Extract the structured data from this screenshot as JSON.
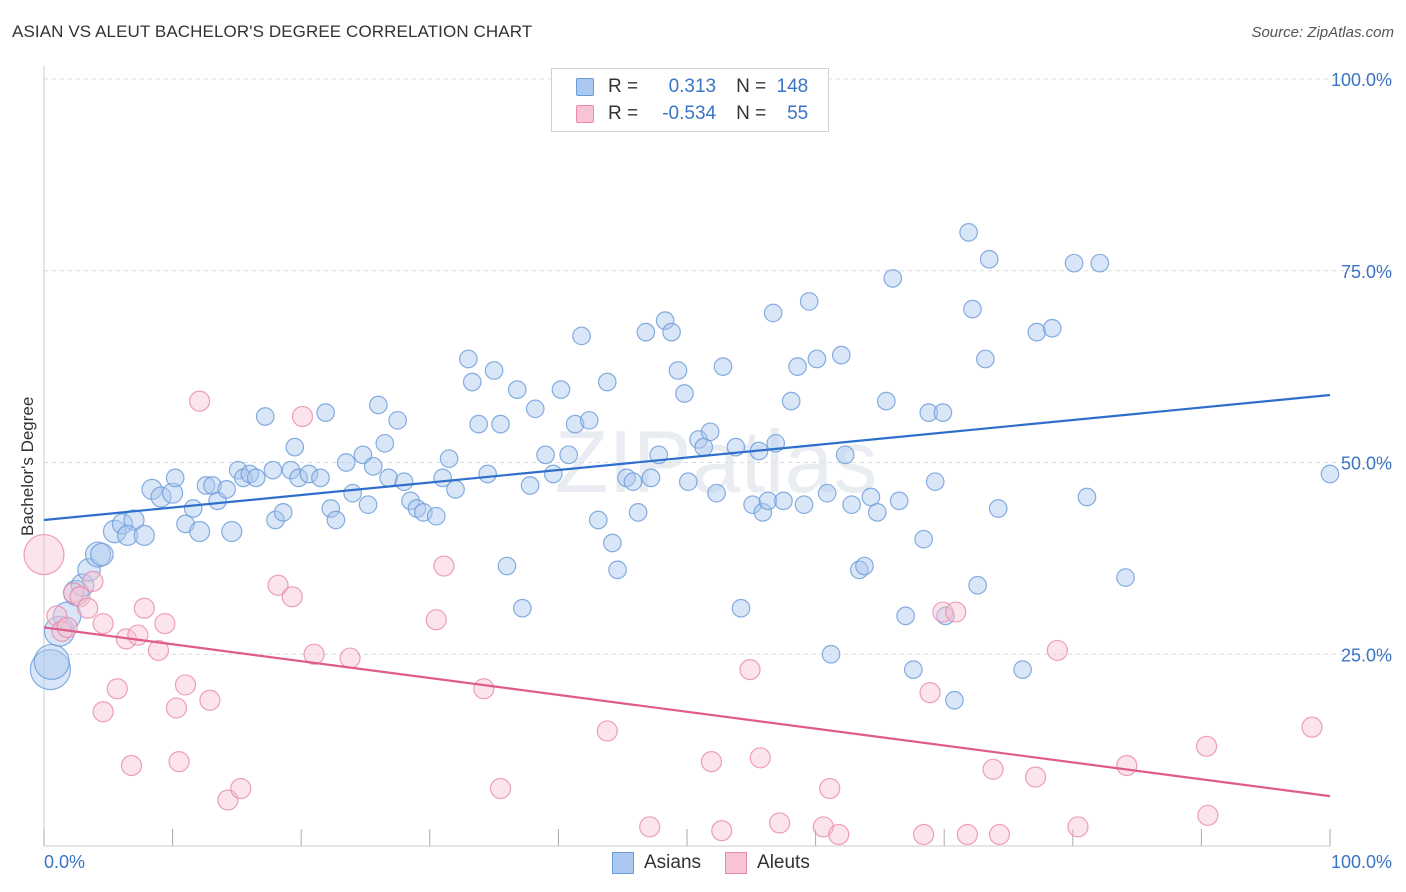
{
  "header": {
    "title": "ASIAN VS ALEUT BACHELOR'S DEGREE CORRELATION CHART",
    "source": "Source: ZipAtlas.com"
  },
  "legend": {
    "rows": [
      {
        "r_label": "R =",
        "r_value": "0.313",
        "n_label": "N =",
        "n_value": "148",
        "color": "#aac8f0",
        "stroke": "#6a9ad8"
      },
      {
        "r_label": "R =",
        "r_value": "-0.534",
        "n_label": "N =",
        "n_value": "55",
        "color": "#f8c4d4",
        "stroke": "#e88aa8"
      }
    ]
  },
  "bottom_legend": {
    "items": [
      {
        "label": "Asians",
        "color": "#aac8f0",
        "stroke": "#6a9ad8"
      },
      {
        "label": "Aleuts",
        "color": "#f8c4d4",
        "stroke": "#e88aa8"
      }
    ]
  },
  "watermark": "ZIPatlas",
  "chart_data": {
    "type": "scatter",
    "title": "ASIAN VS ALEUT BACHELOR'S DEGREE CORRELATION CHART",
    "xlabel": "",
    "ylabel": "Bachelor's Degree",
    "xlim": [
      0,
      100
    ],
    "ylim": [
      0,
      100
    ],
    "x_tick_labels": [
      "0.0%",
      "100.0%"
    ],
    "y_tick_labels": [
      "100.0%",
      "75.0%",
      "50.0%",
      "25.0%"
    ],
    "y_ticks": [
      100,
      75,
      50,
      25
    ],
    "grid": true,
    "legend_position": "top-center",
    "series": [
      {
        "name": "Asians",
        "color": "#6a9ad8",
        "fill": "#aac8f0",
        "trend": {
          "x": [
            0,
            100
          ],
          "y": [
            42.5,
            58.8
          ],
          "color": "#2f6fcc"
        },
        "points": [
          [
            0.5,
            23,
            16
          ],
          [
            0.6,
            24,
            14
          ],
          [
            1.2,
            28,
            12
          ],
          [
            1.8,
            30,
            11
          ],
          [
            2.5,
            33,
            10
          ],
          [
            3,
            34,
            9
          ],
          [
            3.5,
            36,
            9
          ],
          [
            4.2,
            38,
            10
          ],
          [
            4.5,
            38,
            9
          ],
          [
            5.5,
            41,
            9
          ],
          [
            6.1,
            42,
            8
          ],
          [
            7,
            42.5,
            8
          ],
          [
            6.5,
            40.5,
            8
          ],
          [
            7.8,
            40.5,
            8
          ],
          [
            8.4,
            46.5,
            8
          ],
          [
            9.1,
            45.5,
            8
          ],
          [
            10,
            46,
            8
          ],
          [
            10.2,
            48,
            7
          ],
          [
            11,
            42,
            7
          ],
          [
            11.6,
            44,
            7
          ],
          [
            12.1,
            41,
            8
          ],
          [
            12.6,
            47,
            7
          ],
          [
            13.1,
            47,
            7
          ],
          [
            13.5,
            45,
            7
          ],
          [
            14.2,
            46.5,
            7
          ],
          [
            14.6,
            41,
            8
          ],
          [
            15.1,
            49,
            7
          ],
          [
            15.5,
            48,
            7
          ],
          [
            16,
            48.5,
            7
          ],
          [
            16.5,
            48,
            7
          ],
          [
            17.2,
            56,
            7
          ],
          [
            17.8,
            49,
            7
          ],
          [
            18,
            42.5,
            7
          ],
          [
            18.6,
            43.5,
            7
          ],
          [
            19.2,
            49,
            7
          ],
          [
            19.5,
            52,
            7
          ],
          [
            19.8,
            48,
            7
          ],
          [
            20.6,
            48.5,
            7
          ],
          [
            21.5,
            48,
            7
          ],
          [
            21.9,
            56.5,
            7
          ],
          [
            22.3,
            44,
            7
          ],
          [
            22.7,
            42.5,
            7
          ],
          [
            23.5,
            50,
            7
          ],
          [
            24,
            46,
            7
          ],
          [
            24.8,
            51,
            7
          ],
          [
            25.2,
            44.5,
            7
          ],
          [
            25.6,
            49.5,
            7
          ],
          [
            26,
            57.5,
            7
          ],
          [
            26.5,
            52.5,
            7
          ],
          [
            26.8,
            48,
            7
          ],
          [
            27.5,
            55.5,
            7
          ],
          [
            28,
            47.5,
            7
          ],
          [
            28.5,
            45,
            7
          ],
          [
            29,
            44,
            7
          ],
          [
            29.5,
            43.5,
            7
          ],
          [
            30.5,
            43,
            7
          ],
          [
            31,
            48,
            7
          ],
          [
            31.5,
            50.5,
            7
          ],
          [
            32,
            46.5,
            7
          ],
          [
            33,
            63.5,
            7
          ],
          [
            33.3,
            60.5,
            7
          ],
          [
            33.8,
            55,
            7
          ],
          [
            34.5,
            48.5,
            7
          ],
          [
            35,
            62,
            7
          ],
          [
            35.5,
            55,
            7
          ],
          [
            36,
            36.5,
            7
          ],
          [
            36.8,
            59.5,
            7
          ],
          [
            37.2,
            31,
            7
          ],
          [
            37.8,
            47,
            7
          ],
          [
            38.2,
            57,
            7
          ],
          [
            39,
            51,
            7
          ],
          [
            39.6,
            48.5,
            7
          ],
          [
            40.2,
            59.5,
            7
          ],
          [
            40.8,
            51,
            7
          ],
          [
            41.3,
            55,
            7
          ],
          [
            41.8,
            66.5,
            7
          ],
          [
            42.4,
            55.5,
            7
          ],
          [
            43.1,
            42.5,
            7
          ],
          [
            43.8,
            60.5,
            7
          ],
          [
            44.2,
            39.5,
            7
          ],
          [
            44.6,
            36,
            7
          ],
          [
            45.3,
            48,
            7
          ],
          [
            45.8,
            47.5,
            7
          ],
          [
            46.2,
            43.5,
            7
          ],
          [
            46.8,
            67,
            7
          ],
          [
            47.2,
            48,
            7
          ],
          [
            47.8,
            51,
            7
          ],
          [
            48.3,
            68.5,
            7
          ],
          [
            48.8,
            67,
            7
          ],
          [
            49.3,
            62,
            7
          ],
          [
            49.8,
            59,
            7
          ],
          [
            50.1,
            47.5,
            7
          ],
          [
            50.9,
            53,
            7
          ],
          [
            51.3,
            52,
            7
          ],
          [
            51.8,
            54,
            7
          ],
          [
            52.3,
            46,
            7
          ],
          [
            52.8,
            62.5,
            7
          ],
          [
            53.8,
            52,
            7
          ],
          [
            54.2,
            31,
            7
          ],
          [
            55.1,
            44.5,
            7
          ],
          [
            55.6,
            51.5,
            7
          ],
          [
            55.9,
            43.5,
            7
          ],
          [
            56.3,
            45,
            7
          ],
          [
            56.7,
            69.5,
            7
          ],
          [
            56.9,
            52.5,
            7
          ],
          [
            57.5,
            45,
            7
          ],
          [
            58.1,
            58,
            7
          ],
          [
            58.6,
            62.5,
            7
          ],
          [
            59.1,
            44.5,
            7
          ],
          [
            59.5,
            71,
            7
          ],
          [
            60.1,
            63.5,
            7
          ],
          [
            60.9,
            46,
            7
          ],
          [
            61.2,
            25,
            7
          ],
          [
            62,
            64,
            7
          ],
          [
            62.3,
            51,
            7
          ],
          [
            62.8,
            44.5,
            7
          ],
          [
            63.4,
            36,
            7
          ],
          [
            63.8,
            36.5,
            7
          ],
          [
            64.3,
            45.5,
            7
          ],
          [
            64.8,
            43.5,
            7
          ],
          [
            65.5,
            58,
            7
          ],
          [
            66,
            74,
            7
          ],
          [
            66.5,
            45,
            7
          ],
          [
            67,
            30,
            7
          ],
          [
            67.6,
            23,
            7
          ],
          [
            68.4,
            40,
            7
          ],
          [
            68.8,
            56.5,
            7
          ],
          [
            69.3,
            47.5,
            7
          ],
          [
            69.9,
            56.5,
            7
          ],
          [
            70.1,
            30,
            7
          ],
          [
            70.8,
            19,
            7
          ],
          [
            71.9,
            80,
            7
          ],
          [
            72.2,
            70,
            7
          ],
          [
            72.6,
            34,
            7
          ],
          [
            73.2,
            63.5,
            7
          ],
          [
            73.5,
            76.5,
            7
          ],
          [
            74.2,
            44,
            7
          ],
          [
            76.1,
            23,
            7
          ],
          [
            77.2,
            67,
            7
          ],
          [
            78.4,
            67.5,
            7
          ],
          [
            80.1,
            76,
            7
          ],
          [
            81.1,
            45.5,
            7
          ],
          [
            82.1,
            76,
            7
          ],
          [
            84.1,
            35,
            7
          ],
          [
            100,
            48.5,
            7
          ]
        ]
      },
      {
        "name": "Aleuts",
        "color": "#e88aa8",
        "fill": "#f8c4d4",
        "trend": {
          "x": [
            0,
            100
          ],
          "y": [
            28.5,
            6.5
          ],
          "color": "#e05a8a"
        },
        "points": [
          [
            0,
            38,
            16
          ],
          [
            1,
            30,
            8
          ],
          [
            1.4,
            28,
            8
          ],
          [
            1.8,
            28.5,
            8
          ],
          [
            2.3,
            33,
            8
          ],
          [
            2.8,
            32.5,
            8
          ],
          [
            3.4,
            31,
            8
          ],
          [
            3.8,
            34.5,
            8
          ],
          [
            4.6,
            29,
            8
          ],
          [
            4.6,
            17.5,
            8
          ],
          [
            5.7,
            20.5,
            8
          ],
          [
            6.4,
            27,
            8
          ],
          [
            6.8,
            10.5,
            8
          ],
          [
            7.3,
            27.5,
            8
          ],
          [
            7.8,
            31,
            8
          ],
          [
            8.9,
            25.5,
            8
          ],
          [
            9.4,
            29,
            8
          ],
          [
            10.3,
            18,
            8
          ],
          [
            10.5,
            11,
            8
          ],
          [
            11,
            21,
            8
          ],
          [
            12.1,
            58,
            8
          ],
          [
            12.9,
            19,
            8
          ],
          [
            14.3,
            6,
            8
          ],
          [
            15.3,
            7.5,
            8
          ],
          [
            18.2,
            34,
            8
          ],
          [
            19.3,
            32.5,
            8
          ],
          [
            20.1,
            56,
            8
          ],
          [
            21,
            25,
            8
          ],
          [
            23.8,
            24.5,
            8
          ],
          [
            30.5,
            29.5,
            8
          ],
          [
            31.1,
            36.5,
            8
          ],
          [
            34.2,
            20.5,
            8
          ],
          [
            35.5,
            7.5,
            8
          ],
          [
            43.8,
            15,
            8
          ],
          [
            47.1,
            2.5,
            8
          ],
          [
            51.9,
            11,
            8
          ],
          [
            52.7,
            2,
            8
          ],
          [
            54.9,
            23,
            8
          ],
          [
            55.7,
            11.5,
            8
          ],
          [
            57.2,
            3,
            8
          ],
          [
            60.6,
            2.5,
            8
          ],
          [
            61.1,
            7.5,
            8
          ],
          [
            61.8,
            1.5,
            8
          ],
          [
            68.4,
            1.5,
            8
          ],
          [
            68.9,
            20,
            8
          ],
          [
            69.9,
            30.5,
            8
          ],
          [
            70.9,
            30.5,
            8
          ],
          [
            71.8,
            1.5,
            8
          ],
          [
            73.8,
            10,
            8
          ],
          [
            74.3,
            1.5,
            8
          ],
          [
            77.1,
            9,
            8
          ],
          [
            78.8,
            25.5,
            8
          ],
          [
            80.4,
            2.5,
            8
          ],
          [
            84.2,
            10.5,
            8
          ],
          [
            90.4,
            13,
            8
          ],
          [
            90.5,
            4,
            8
          ],
          [
            98.6,
            15.5,
            8
          ]
        ]
      }
    ]
  }
}
